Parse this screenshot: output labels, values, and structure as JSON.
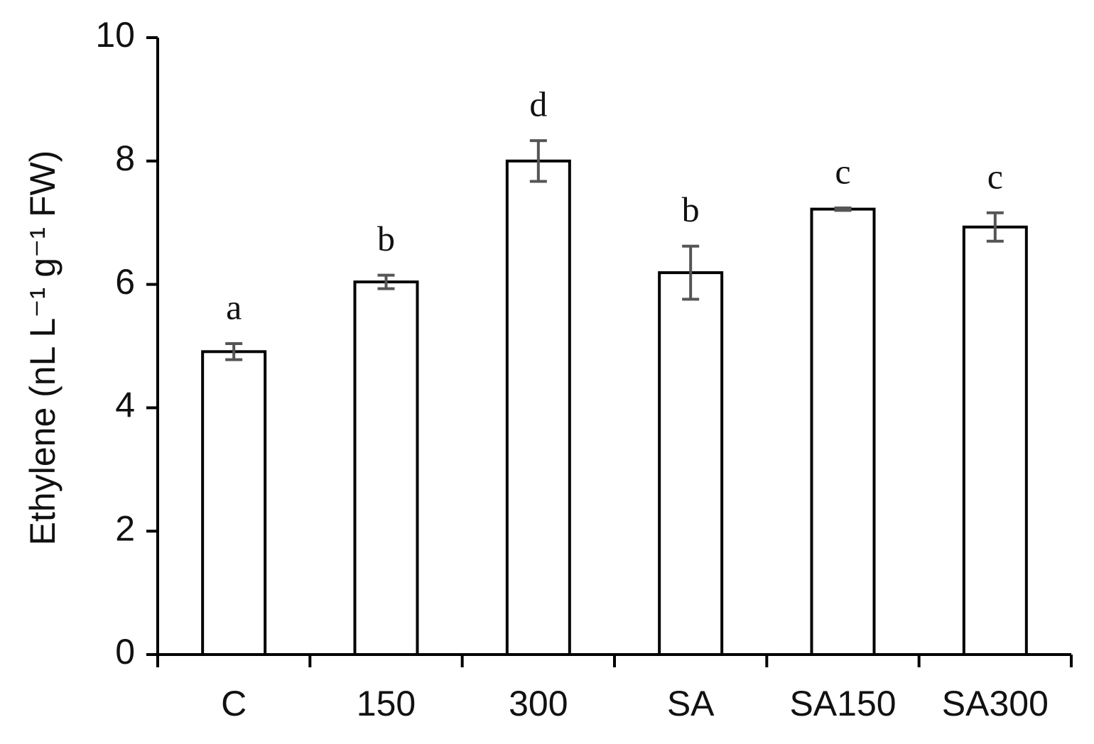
{
  "chart_data": {
    "type": "bar",
    "y_label": "Ethylene  (nL L⁻¹ g⁻¹ FW)",
    "categories": [
      "C",
      "150",
      "300",
      "SA",
      "SA150",
      "SA300"
    ],
    "values": [
      4.91,
      6.04,
      8.0,
      6.19,
      7.22,
      6.93
    ],
    "errors": [
      0.13,
      0.11,
      0.33,
      0.43,
      0.02,
      0.23
    ],
    "annotations": [
      "a",
      "b",
      "d",
      "b",
      "c",
      "c"
    ],
    "color": "#ffffff",
    "ylim": [
      0,
      10
    ],
    "yticks": [
      0,
      2,
      4,
      6,
      8,
      10
    ],
    "grid": false
  }
}
